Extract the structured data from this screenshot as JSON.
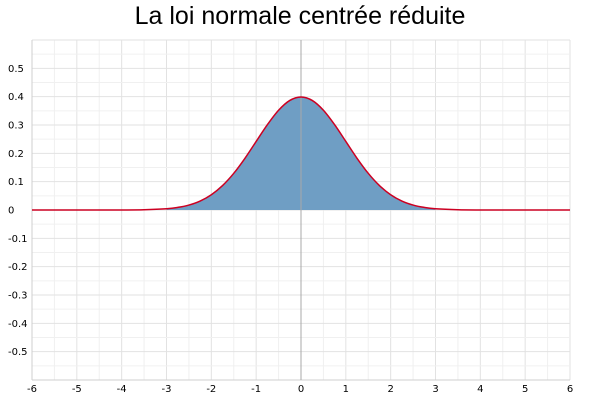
{
  "chart_data": {
    "type": "area",
    "title": "La loi normale centrée réduite",
    "xlabel": "",
    "ylabel": "",
    "xlim": [
      -6,
      6
    ],
    "ylim": [
      -0.6,
      0.6
    ],
    "x_ticks": [
      -6,
      -5,
      -4,
      -3,
      -2,
      -1,
      0,
      1,
      2,
      3,
      4,
      5,
      6
    ],
    "x_tick_labels": [
      "-6",
      "-5",
      "-4",
      "-3",
      "-2",
      "-1",
      "0",
      "1",
      "2",
      "3",
      "4",
      "5",
      "6"
    ],
    "y_ticks": [
      -0.5,
      -0.4,
      -0.3,
      -0.2,
      -0.1,
      0,
      0.1,
      0.2,
      0.3,
      0.4,
      0.5
    ],
    "y_tick_labels": [
      "-0.5",
      "-0.4",
      "-0.3",
      "-0.2",
      "-0.1",
      "0",
      "0.1",
      "0.2",
      "0.3",
      "0.4",
      "0.5"
    ],
    "grid": true,
    "shaded_interval": [
      -3,
      3
    ],
    "series": [
      {
        "x": [
          -6,
          -5.5,
          -5,
          -4.5,
          -4,
          -3.5,
          -3,
          -2.75,
          -2.5,
          -2.25,
          -2,
          -1.75,
          -1.5,
          -1.25,
          -1,
          -0.75,
          -0.5,
          -0.25,
          0,
          0.25,
          0.5,
          0.75,
          1,
          1.25,
          1.5,
          1.75,
          2,
          2.25,
          2.5,
          2.75,
          3,
          3.5,
          4,
          4.5,
          5,
          5.5,
          6
        ],
        "y": [
          0,
          0,
          0,
          0,
          0.0001,
          0.0009,
          0.0044,
          0.0091,
          0.0175,
          0.0317,
          0.054,
          0.0863,
          0.1295,
          0.1826,
          0.242,
          0.3011,
          0.3521,
          0.3867,
          0.3989,
          0.3867,
          0.3521,
          0.3011,
          0.242,
          0.1826,
          0.1295,
          0.0863,
          0.054,
          0.0317,
          0.0175,
          0.0091,
          0.0044,
          0.0009,
          0.0001,
          0,
          0,
          0,
          0
        ]
      }
    ],
    "colors": {
      "line": "#cc0022",
      "fill": "#6f9ec4",
      "grid": "#e2e2e2",
      "y_axis": "#a8a8a8",
      "frame": "#cfcfcf"
    }
  }
}
